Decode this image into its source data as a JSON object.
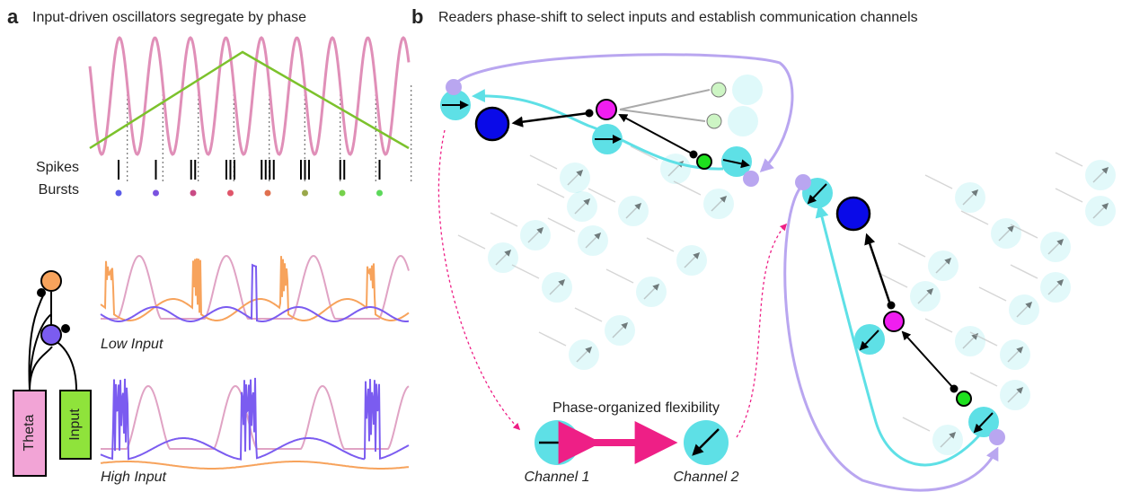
{
  "panel_a": {
    "label": "a",
    "title": "Input-driven oscillators segregate by phase",
    "spikes_label": "Spikes",
    "bursts_label": "Bursts",
    "low_input_label": "Low Input",
    "high_input_label": "High Input",
    "theta_label": "Theta",
    "input_label": "Input"
  },
  "panel_b": {
    "label": "b",
    "title": "Readers phase-shift to select inputs and establish communication channels",
    "flexibility_label": "Phase-organized flexibility",
    "channel_1_label": "Channel 1",
    "channel_2_label": "Channel 2"
  }
}
